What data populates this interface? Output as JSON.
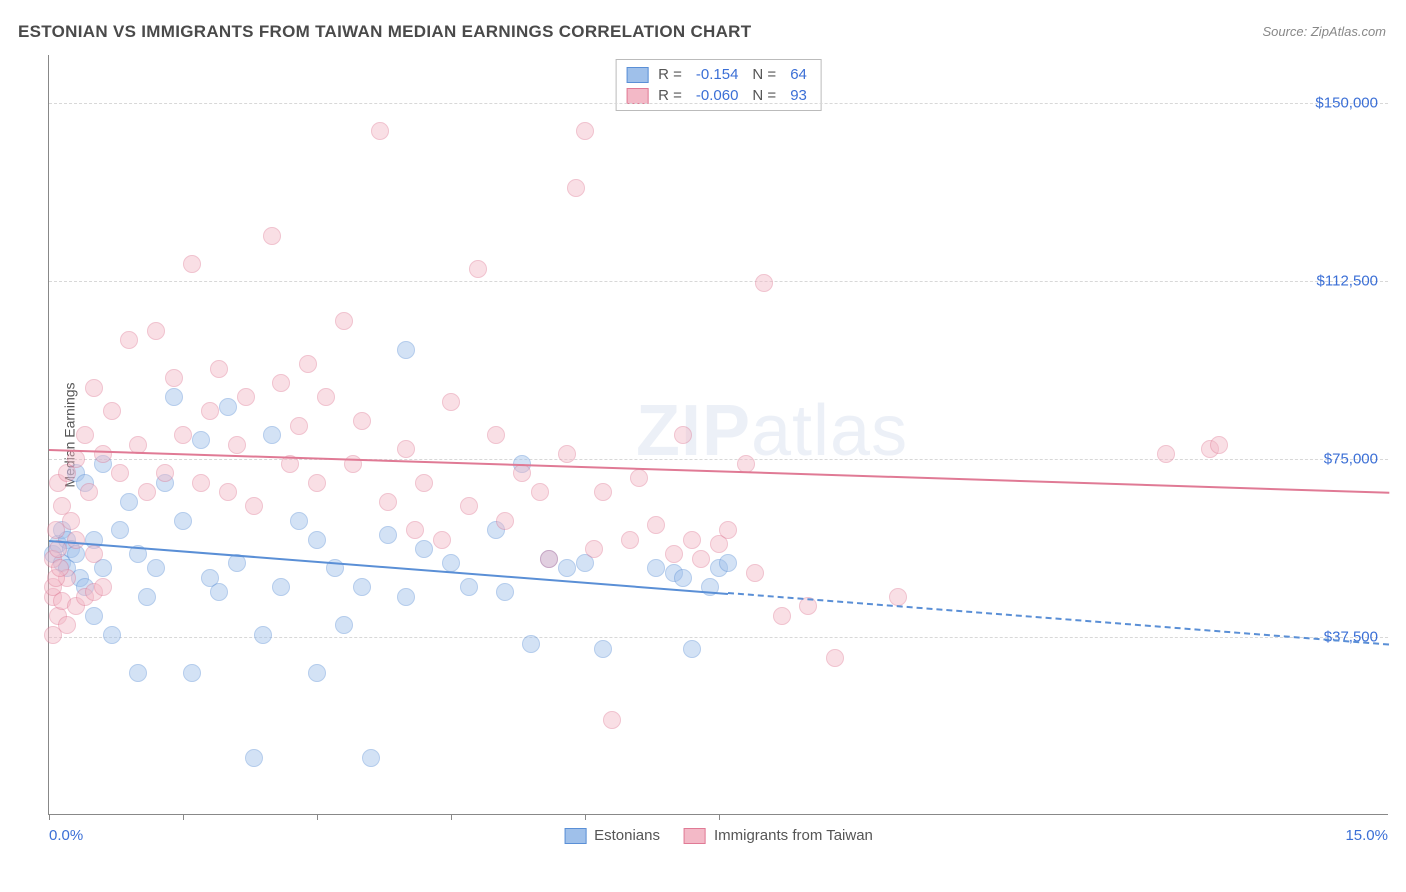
{
  "title": "ESTONIAN VS IMMIGRANTS FROM TAIWAN MEDIAN EARNINGS CORRELATION CHART",
  "source": "Source: ZipAtlas.com",
  "y_axis_title": "Median Earnings",
  "watermark_bold": "ZIP",
  "watermark_rest": "atlas",
  "chart": {
    "type": "scatter",
    "background_color": "#ffffff",
    "grid_color": "#d8d8d8",
    "axis_color": "#888888",
    "xlim": [
      0,
      15
    ],
    "ylim": [
      0,
      160000
    ],
    "x_min_label": "0.0%",
    "x_max_label": "15.0%",
    "x_ticks": [
      0,
      1.5,
      3.0,
      4.5,
      6.0,
      7.5
    ],
    "y_gridlines": [
      37500,
      75000,
      112500,
      150000
    ],
    "y_tick_labels": [
      "$37,500",
      "$75,000",
      "$112,500",
      "$150,000"
    ],
    "marker_radius": 9,
    "marker_opacity": 0.45,
    "series": [
      {
        "name": "Estonians",
        "fill": "#9fc0ea",
        "stroke": "#5a8fd6",
        "R": "-0.154",
        "N": "64",
        "trend": {
          "y_at_x0": 58000,
          "y_at_x15": 36000,
          "solid_until_x": 7.6
        },
        "points": [
          [
            0.05,
            55000
          ],
          [
            0.1,
            57000
          ],
          [
            0.15,
            53000
          ],
          [
            0.15,
            60000
          ],
          [
            0.2,
            52000
          ],
          [
            0.2,
            58000
          ],
          [
            0.25,
            56000
          ],
          [
            0.3,
            55000
          ],
          [
            0.3,
            72000
          ],
          [
            0.35,
            50000
          ],
          [
            0.4,
            70000
          ],
          [
            0.4,
            48000
          ],
          [
            0.5,
            58000
          ],
          [
            0.5,
            42000
          ],
          [
            0.6,
            74000
          ],
          [
            0.6,
            52000
          ],
          [
            0.7,
            38000
          ],
          [
            0.8,
            60000
          ],
          [
            0.9,
            66000
          ],
          [
            1.0,
            30000
          ],
          [
            1.0,
            55000
          ],
          [
            1.1,
            46000
          ],
          [
            1.2,
            52000
          ],
          [
            1.3,
            70000
          ],
          [
            1.4,
            88000
          ],
          [
            1.5,
            62000
          ],
          [
            1.6,
            30000
          ],
          [
            1.7,
            79000
          ],
          [
            1.8,
            50000
          ],
          [
            1.9,
            47000
          ],
          [
            2.0,
            86000
          ],
          [
            2.1,
            53000
          ],
          [
            2.3,
            12000
          ],
          [
            2.4,
            38000
          ],
          [
            2.5,
            80000
          ],
          [
            2.6,
            48000
          ],
          [
            2.8,
            62000
          ],
          [
            3.0,
            58000
          ],
          [
            3.0,
            30000
          ],
          [
            3.2,
            52000
          ],
          [
            3.3,
            40000
          ],
          [
            3.5,
            48000
          ],
          [
            3.6,
            12000
          ],
          [
            3.8,
            59000
          ],
          [
            4.0,
            98000
          ],
          [
            4.0,
            46000
          ],
          [
            4.2,
            56000
          ],
          [
            4.5,
            53000
          ],
          [
            4.7,
            48000
          ],
          [
            5.0,
            60000
          ],
          [
            5.1,
            47000
          ],
          [
            5.3,
            74000
          ],
          [
            5.4,
            36000
          ],
          [
            5.6,
            54000
          ],
          [
            5.8,
            52000
          ],
          [
            6.0,
            53000
          ],
          [
            6.2,
            35000
          ],
          [
            6.8,
            52000
          ],
          [
            7.0,
            51000
          ],
          [
            7.1,
            50000
          ],
          [
            7.2,
            35000
          ],
          [
            7.4,
            48000
          ],
          [
            7.5,
            52000
          ],
          [
            7.6,
            53000
          ]
        ]
      },
      {
        "name": "Immigrants from Taiwan",
        "fill": "#f3b9c7",
        "stroke": "#e07a95",
        "R": "-0.060",
        "N": "93",
        "trend": {
          "y_at_x0": 77000,
          "y_at_x15": 68000,
          "solid_until_x": 15
        },
        "points": [
          [
            0.05,
            54000
          ],
          [
            0.08,
            60000
          ],
          [
            0.1,
            56000
          ],
          [
            0.1,
            70000
          ],
          [
            0.15,
            65000
          ],
          [
            0.2,
            72000
          ],
          [
            0.2,
            50000
          ],
          [
            0.25,
            62000
          ],
          [
            0.3,
            75000
          ],
          [
            0.3,
            58000
          ],
          [
            0.4,
            80000
          ],
          [
            0.45,
            68000
          ],
          [
            0.5,
            90000
          ],
          [
            0.5,
            55000
          ],
          [
            0.6,
            76000
          ],
          [
            0.7,
            85000
          ],
          [
            0.8,
            72000
          ],
          [
            0.9,
            100000
          ],
          [
            1.0,
            78000
          ],
          [
            1.1,
            68000
          ],
          [
            1.2,
            102000
          ],
          [
            1.3,
            72000
          ],
          [
            1.4,
            92000
          ],
          [
            1.5,
            80000
          ],
          [
            1.6,
            116000
          ],
          [
            1.7,
            70000
          ],
          [
            1.8,
            85000
          ],
          [
            1.9,
            94000
          ],
          [
            2.0,
            68000
          ],
          [
            2.1,
            78000
          ],
          [
            2.2,
            88000
          ],
          [
            2.3,
            65000
          ],
          [
            2.5,
            122000
          ],
          [
            2.6,
            91000
          ],
          [
            2.7,
            74000
          ],
          [
            2.8,
            82000
          ],
          [
            2.9,
            95000
          ],
          [
            3.0,
            70000
          ],
          [
            3.1,
            88000
          ],
          [
            3.3,
            104000
          ],
          [
            3.4,
            74000
          ],
          [
            3.5,
            83000
          ],
          [
            3.7,
            144000
          ],
          [
            3.8,
            66000
          ],
          [
            4.0,
            77000
          ],
          [
            4.1,
            60000
          ],
          [
            4.2,
            70000
          ],
          [
            4.4,
            58000
          ],
          [
            4.5,
            87000
          ],
          [
            4.7,
            65000
          ],
          [
            4.8,
            115000
          ],
          [
            5.0,
            80000
          ],
          [
            5.1,
            62000
          ],
          [
            5.3,
            72000
          ],
          [
            5.5,
            68000
          ],
          [
            5.6,
            54000
          ],
          [
            5.8,
            76000
          ],
          [
            5.9,
            132000
          ],
          [
            6.0,
            144000
          ],
          [
            6.1,
            56000
          ],
          [
            6.2,
            68000
          ],
          [
            6.3,
            20000
          ],
          [
            6.5,
            58000
          ],
          [
            6.6,
            71000
          ],
          [
            6.8,
            61000
          ],
          [
            7.0,
            55000
          ],
          [
            7.1,
            80000
          ],
          [
            7.2,
            58000
          ],
          [
            7.3,
            54000
          ],
          [
            7.5,
            57000
          ],
          [
            7.6,
            60000
          ],
          [
            7.8,
            74000
          ],
          [
            7.9,
            51000
          ],
          [
            8.0,
            112000
          ],
          [
            8.2,
            42000
          ],
          [
            8.5,
            44000
          ],
          [
            8.8,
            33000
          ],
          [
            9.5,
            46000
          ],
          [
            12.5,
            76000
          ],
          [
            13.0,
            77000
          ],
          [
            13.1,
            78000
          ],
          [
            0.05,
            46000
          ],
          [
            0.05,
            48000
          ],
          [
            0.1,
            42000
          ],
          [
            0.15,
            45000
          ],
          [
            0.2,
            40000
          ],
          [
            0.08,
            50000
          ],
          [
            0.12,
            52000
          ],
          [
            0.05,
            38000
          ],
          [
            0.3,
            44000
          ],
          [
            0.4,
            46000
          ],
          [
            0.5,
            47000
          ],
          [
            0.6,
            48000
          ]
        ]
      }
    ]
  }
}
